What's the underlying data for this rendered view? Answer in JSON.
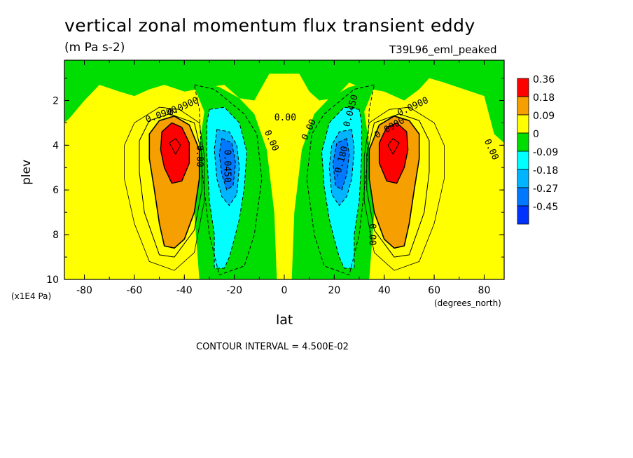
{
  "chart_data": {
    "type": "heatmap",
    "title": "vertical zonal momentum flux transient eddy",
    "units": "(m Pa s-2)",
    "run_label": "T39L96_eml_peaked",
    "xlabel": "lat",
    "x_units": "(degrees_north)",
    "ylabel": "plev",
    "y_units": "(x1E4 Pa)",
    "xlim": [
      -88,
      88
    ],
    "ylim": [
      10,
      0.2
    ],
    "x_ticks": [
      -80,
      -60,
      -40,
      -20,
      0,
      20,
      40,
      60,
      80
    ],
    "y_ticks": [
      2,
      4,
      6,
      8,
      10
    ],
    "colorbar": {
      "levels": [
        "0.36",
        "0.18",
        "0.09",
        "0",
        "-0.09",
        "-0.18",
        "-0.27",
        "-0.45"
      ],
      "colors": [
        "#ff0000",
        "#f5a000",
        "#ffff00",
        "#00dd00",
        "#00ffff",
        "#00b4ff",
        "#0078ff",
        "#0032ff"
      ]
    },
    "contour_labels": [
      "0.0900",
      "0.0900",
      "0.0900",
      "0.0900",
      "0.0450",
      "0.0450",
      "-0.180",
      "0.00",
      "0.00",
      "0.00",
      "0.00",
      "0.00",
      "0.00"
    ],
    "contour_interval": "CONTOUR INTERVAL = 4.500E-02"
  }
}
